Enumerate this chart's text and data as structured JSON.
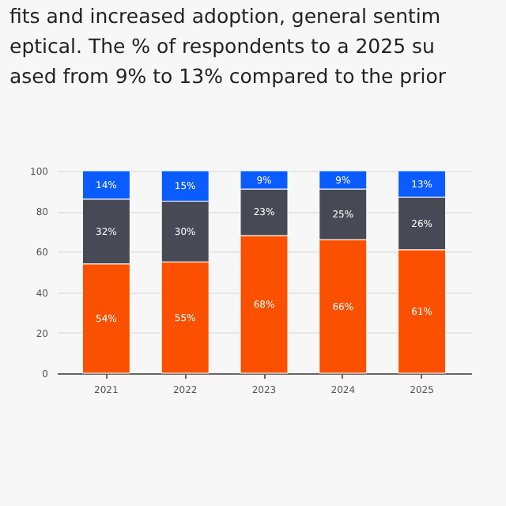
{
  "chart_data": {
    "type": "bar",
    "stacked": true,
    "annotations": [
      "fits and increased adoption, general sentim",
      "eptical. The % of respondents to a 2025 su",
      "ased from 9% to 13% compared to the prior"
    ],
    "categories": [
      "2021",
      "2022",
      "2023",
      "2024",
      "2025"
    ],
    "series": [
      {
        "color": "#fa5000",
        "values": [
          54,
          55,
          68,
          66,
          61
        ],
        "value_labels": [
          "54%",
          "55%",
          "68%",
          "66%",
          "61%"
        ]
      },
      {
        "color": "#474a54",
        "values": [
          32,
          30,
          23,
          25,
          26
        ],
        "value_labels": [
          "32%",
          "30%",
          "23%",
          "25%",
          "26%"
        ]
      },
      {
        "color": "#0a5cff",
        "values": [
          14,
          15,
          9,
          9,
          13
        ],
        "value_labels": [
          "14%",
          "15%",
          "9%",
          "9%",
          "13%"
        ]
      }
    ],
    "ylim": [
      0,
      100
    ],
    "yticks": [
      0,
      20,
      40,
      60,
      80,
      100
    ],
    "grid": "y"
  }
}
